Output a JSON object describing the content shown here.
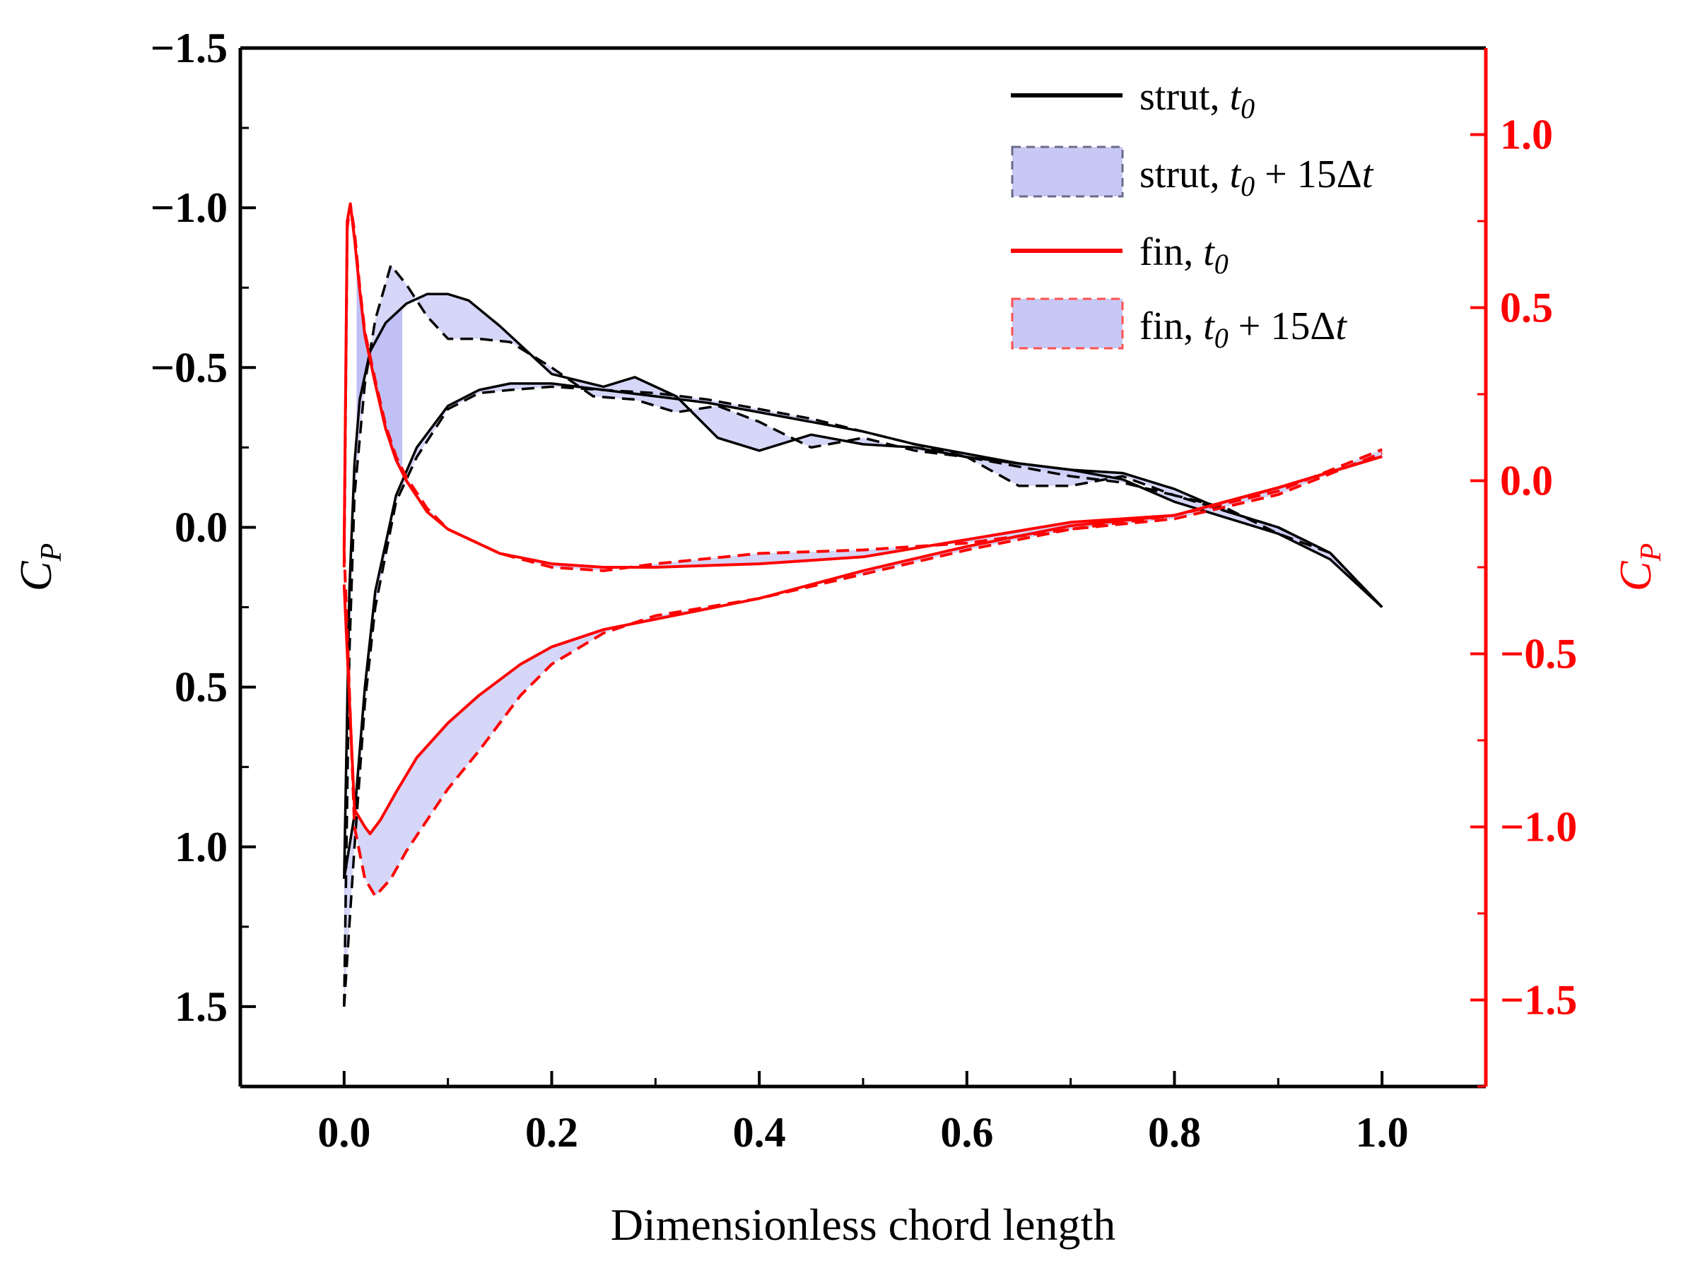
{
  "chart_data": {
    "type": "line",
    "title": "",
    "xlabel": "Dimensionless chord length",
    "ylabel_left": "C",
    "ylabel_left_sub": "P",
    "ylabel_right": "C",
    "ylabel_right_sub": "P",
    "xlim": [
      -0.1,
      1.1
    ],
    "ylim_left": [
      1.75,
      -1.5
    ],
    "ylim_right": [
      -1.75,
      1.25
    ],
    "x_ticks": [
      "0.0",
      "0.2",
      "0.4",
      "0.6",
      "0.8",
      "1.0"
    ],
    "y_left_ticks": [
      "−1.5",
      "−1.0",
      "−0.5",
      "0.0",
      "0.5",
      "1.0",
      "1.5"
    ],
    "y_right_ticks": [
      "1.0",
      "0.5",
      "0.0",
      "−0.5",
      "−1.0",
      "−1.5"
    ],
    "colors": {
      "strut": "#000000",
      "fin": "#ff0000",
      "fill": "#c8c8f5",
      "fill_dark": "#9696f0",
      "right_axis": "#ff0000"
    },
    "legend": [
      {
        "base": "strut, ",
        "sym": "t",
        "sub": "0",
        "tail": ""
      },
      {
        "base": "strut, ",
        "sym": "t",
        "sub": "0",
        "tail": " + 15Δ",
        "tail_sym": "t"
      },
      {
        "base": "fin, ",
        "sym": "t",
        "sub": "0",
        "tail": ""
      },
      {
        "base": "fin, ",
        "sym": "t",
        "sub": "0",
        "tail": " + 15Δ",
        "tail_sym": "t"
      }
    ],
    "series": [
      {
        "name": "strut, t0 upper",
        "axis": "left",
        "style": "solid",
        "color": "#000000",
        "x": [
          0.0,
          0.005,
          0.01,
          0.015,
          0.025,
          0.04,
          0.06,
          0.08,
          0.1,
          0.12,
          0.15,
          0.2,
          0.25,
          0.28,
          0.32,
          0.36,
          0.4,
          0.45,
          0.5,
          0.55,
          0.6,
          0.65,
          0.7,
          0.75,
          0.8,
          0.85,
          0.9,
          0.95,
          1.0
        ],
        "y": [
          1.1,
          0.2,
          -0.2,
          -0.4,
          -0.55,
          -0.64,
          -0.7,
          -0.73,
          -0.73,
          -0.71,
          -0.63,
          -0.48,
          -0.44,
          -0.47,
          -0.41,
          -0.28,
          -0.24,
          -0.29,
          -0.26,
          -0.25,
          -0.22,
          -0.2,
          -0.18,
          -0.17,
          -0.12,
          -0.05,
          0.0,
          0.08,
          0.25
        ]
      },
      {
        "name": "strut, t0 lower",
        "axis": "left",
        "style": "solid",
        "color": "#000000",
        "x": [
          0.0,
          0.01,
          0.02,
          0.03,
          0.05,
          0.07,
          0.1,
          0.13,
          0.16,
          0.2,
          0.25,
          0.3,
          0.35,
          0.4,
          0.45,
          0.5,
          0.55,
          0.6,
          0.65,
          0.7,
          0.75,
          0.8,
          0.85,
          0.9,
          0.95,
          1.0
        ],
        "y": [
          1.1,
          0.9,
          0.5,
          0.2,
          -0.1,
          -0.25,
          -0.38,
          -0.43,
          -0.45,
          -0.45,
          -0.43,
          -0.41,
          -0.39,
          -0.36,
          -0.33,
          -0.3,
          -0.26,
          -0.23,
          -0.2,
          -0.18,
          -0.15,
          -0.08,
          -0.03,
          0.02,
          0.1,
          0.25
        ]
      },
      {
        "name": "strut, t0 + 15Δt upper",
        "axis": "left",
        "style": "dashed",
        "color": "#000000",
        "x": [
          0.0,
          0.005,
          0.01,
          0.02,
          0.03,
          0.045,
          0.06,
          0.08,
          0.1,
          0.13,
          0.16,
          0.2,
          0.24,
          0.28,
          0.32,
          0.36,
          0.4,
          0.45,
          0.5,
          0.55,
          0.6,
          0.65,
          0.7,
          0.75,
          0.8,
          0.85,
          0.9,
          0.95,
          1.0
        ],
        "y": [
          1.5,
          0.4,
          -0.1,
          -0.45,
          -0.65,
          -0.82,
          -0.76,
          -0.66,
          -0.59,
          -0.59,
          -0.58,
          -0.5,
          -0.41,
          -0.4,
          -0.36,
          -0.38,
          -0.33,
          -0.25,
          -0.28,
          -0.24,
          -0.22,
          -0.13,
          -0.13,
          -0.16,
          -0.1,
          -0.06,
          0.02,
          0.08,
          0.25
        ]
      },
      {
        "name": "strut, t0 + 15Δt lower",
        "axis": "left",
        "style": "dashed",
        "color": "#000000",
        "x": [
          0.0,
          0.01,
          0.02,
          0.03,
          0.05,
          0.07,
          0.1,
          0.13,
          0.16,
          0.2,
          0.25,
          0.3,
          0.35,
          0.4,
          0.45,
          0.5,
          0.55,
          0.6,
          0.65,
          0.7,
          0.75,
          0.8,
          0.85,
          0.9,
          0.95,
          1.0
        ],
        "y": [
          1.5,
          1.0,
          0.55,
          0.25,
          -0.08,
          -0.22,
          -0.37,
          -0.42,
          -0.43,
          -0.44,
          -0.43,
          -0.42,
          -0.4,
          -0.37,
          -0.34,
          -0.3,
          -0.26,
          -0.22,
          -0.19,
          -0.16,
          -0.14,
          -0.1,
          -0.05,
          0.0,
          0.08,
          0.25
        ]
      },
      {
        "name": "fin, t0 upper",
        "axis": "right",
        "style": "solid",
        "color": "#ff0000",
        "x": [
          0.0,
          0.003,
          0.006,
          0.01,
          0.015,
          0.02,
          0.03,
          0.04,
          0.05,
          0.06,
          0.08,
          0.1,
          0.15,
          0.2,
          0.25,
          0.3,
          0.4,
          0.5,
          0.6,
          0.7,
          0.8,
          0.9,
          1.0
        ],
        "y": [
          -0.2,
          0.75,
          0.8,
          0.7,
          0.55,
          0.42,
          0.28,
          0.15,
          0.06,
          0.0,
          -0.09,
          -0.14,
          -0.21,
          -0.24,
          -0.25,
          -0.25,
          -0.24,
          -0.22,
          -0.17,
          -0.12,
          -0.1,
          -0.02,
          0.07
        ]
      },
      {
        "name": "fin, t0 lower",
        "axis": "right",
        "style": "solid",
        "color": "#ff0000",
        "x": [
          0.0,
          0.01,
          0.02,
          0.025,
          0.035,
          0.05,
          0.07,
          0.1,
          0.13,
          0.17,
          0.2,
          0.25,
          0.3,
          0.4,
          0.5,
          0.6,
          0.7,
          0.8,
          0.9,
          1.0
        ],
        "y": [
          -0.3,
          -0.95,
          -1.0,
          -1.02,
          -0.98,
          -0.9,
          -0.8,
          -0.7,
          -0.62,
          -0.53,
          -0.48,
          -0.43,
          -0.4,
          -0.34,
          -0.26,
          -0.19,
          -0.13,
          -0.1,
          -0.02,
          0.07
        ]
      },
      {
        "name": "fin, t0 + 15Δt upper",
        "axis": "right",
        "style": "dashed",
        "color": "#ff0000",
        "x": [
          0.0,
          0.003,
          0.006,
          0.01,
          0.015,
          0.02,
          0.03,
          0.04,
          0.05,
          0.06,
          0.08,
          0.1,
          0.15,
          0.2,
          0.25,
          0.3,
          0.4,
          0.5,
          0.6,
          0.7,
          0.8,
          0.9,
          1.0
        ],
        "y": [
          -0.25,
          0.73,
          0.8,
          0.72,
          0.56,
          0.43,
          0.29,
          0.16,
          0.07,
          0.01,
          -0.08,
          -0.14,
          -0.21,
          -0.25,
          -0.26,
          -0.24,
          -0.21,
          -0.2,
          -0.18,
          -0.14,
          -0.1,
          -0.03,
          0.09
        ]
      },
      {
        "name": "fin, t0 + 15Δt lower",
        "axis": "right",
        "style": "dashed",
        "color": "#ff0000",
        "x": [
          0.0,
          0.01,
          0.02,
          0.03,
          0.045,
          0.06,
          0.08,
          0.1,
          0.13,
          0.17,
          0.2,
          0.25,
          0.3,
          0.4,
          0.5,
          0.6,
          0.7,
          0.8,
          0.9,
          1.0
        ],
        "y": [
          -0.2,
          -1.0,
          -1.15,
          -1.2,
          -1.15,
          -1.07,
          -0.98,
          -0.89,
          -0.78,
          -0.62,
          -0.53,
          -0.44,
          -0.39,
          -0.34,
          -0.27,
          -0.2,
          -0.14,
          -0.11,
          -0.04,
          0.08
        ]
      }
    ]
  }
}
